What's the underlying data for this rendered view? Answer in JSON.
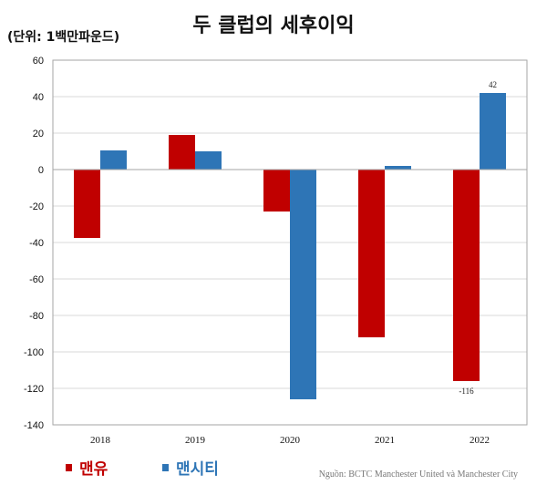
{
  "title": "두 클럽의 세후이익",
  "unit_label": "(단위: 1백만파운드)",
  "source": "Nguồn: BCTC Manchester United và Manchester City",
  "colors": {
    "man_utd": "#c00000",
    "man_city": "#2e75b6",
    "grid": "#d9d9d9"
  },
  "chart_data": {
    "type": "bar",
    "categories": [
      "2018",
      "2019",
      "2020",
      "2021",
      "2022"
    ],
    "series": [
      {
        "name": "맨유",
        "values": [
          -37.5,
          19,
          -23,
          -92,
          -116
        ]
      },
      {
        "name": "맨시티",
        "values": [
          10.5,
          10,
          -126,
          2,
          42
        ]
      }
    ],
    "ylim": [
      -140,
      60
    ],
    "yticks": [
      "60",
      "40",
      "20",
      "0",
      "-20",
      "-40",
      "-60",
      "-80",
      "-100",
      "-120",
      "-140"
    ],
    "data_labels": [
      {
        "series": 1,
        "index": 4,
        "text": "42"
      },
      {
        "series": 0,
        "index": 4,
        "text": "-116"
      }
    ],
    "grid": true,
    "legend": "bottom-left"
  }
}
